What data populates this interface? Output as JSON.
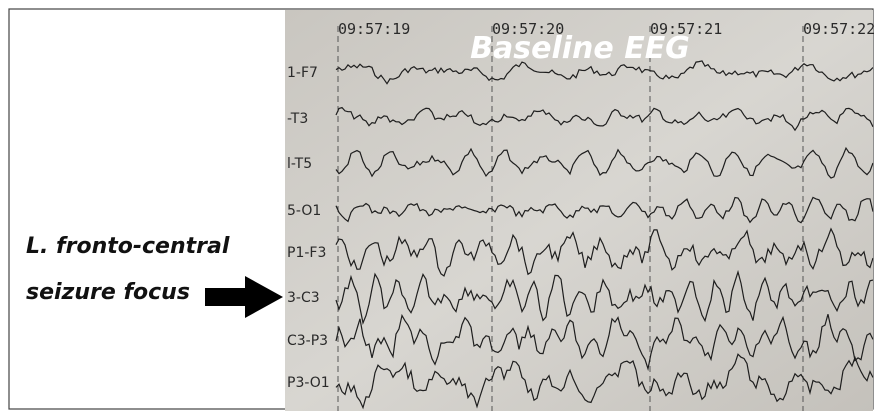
{
  "title": "Baseline EEG",
  "annotation": [
    "L. fronto-central",
    "seizure focus"
  ],
  "timestamps": [
    "09:57:19",
    "09:57:20",
    "09:57:21",
    "09:57:22"
  ],
  "channels": [
    "1-F7",
    "-T3",
    "l-T5",
    "5-O1",
    "P1-F3",
    "3-C3",
    "C3-P3",
    "P3-O1"
  ]
}
